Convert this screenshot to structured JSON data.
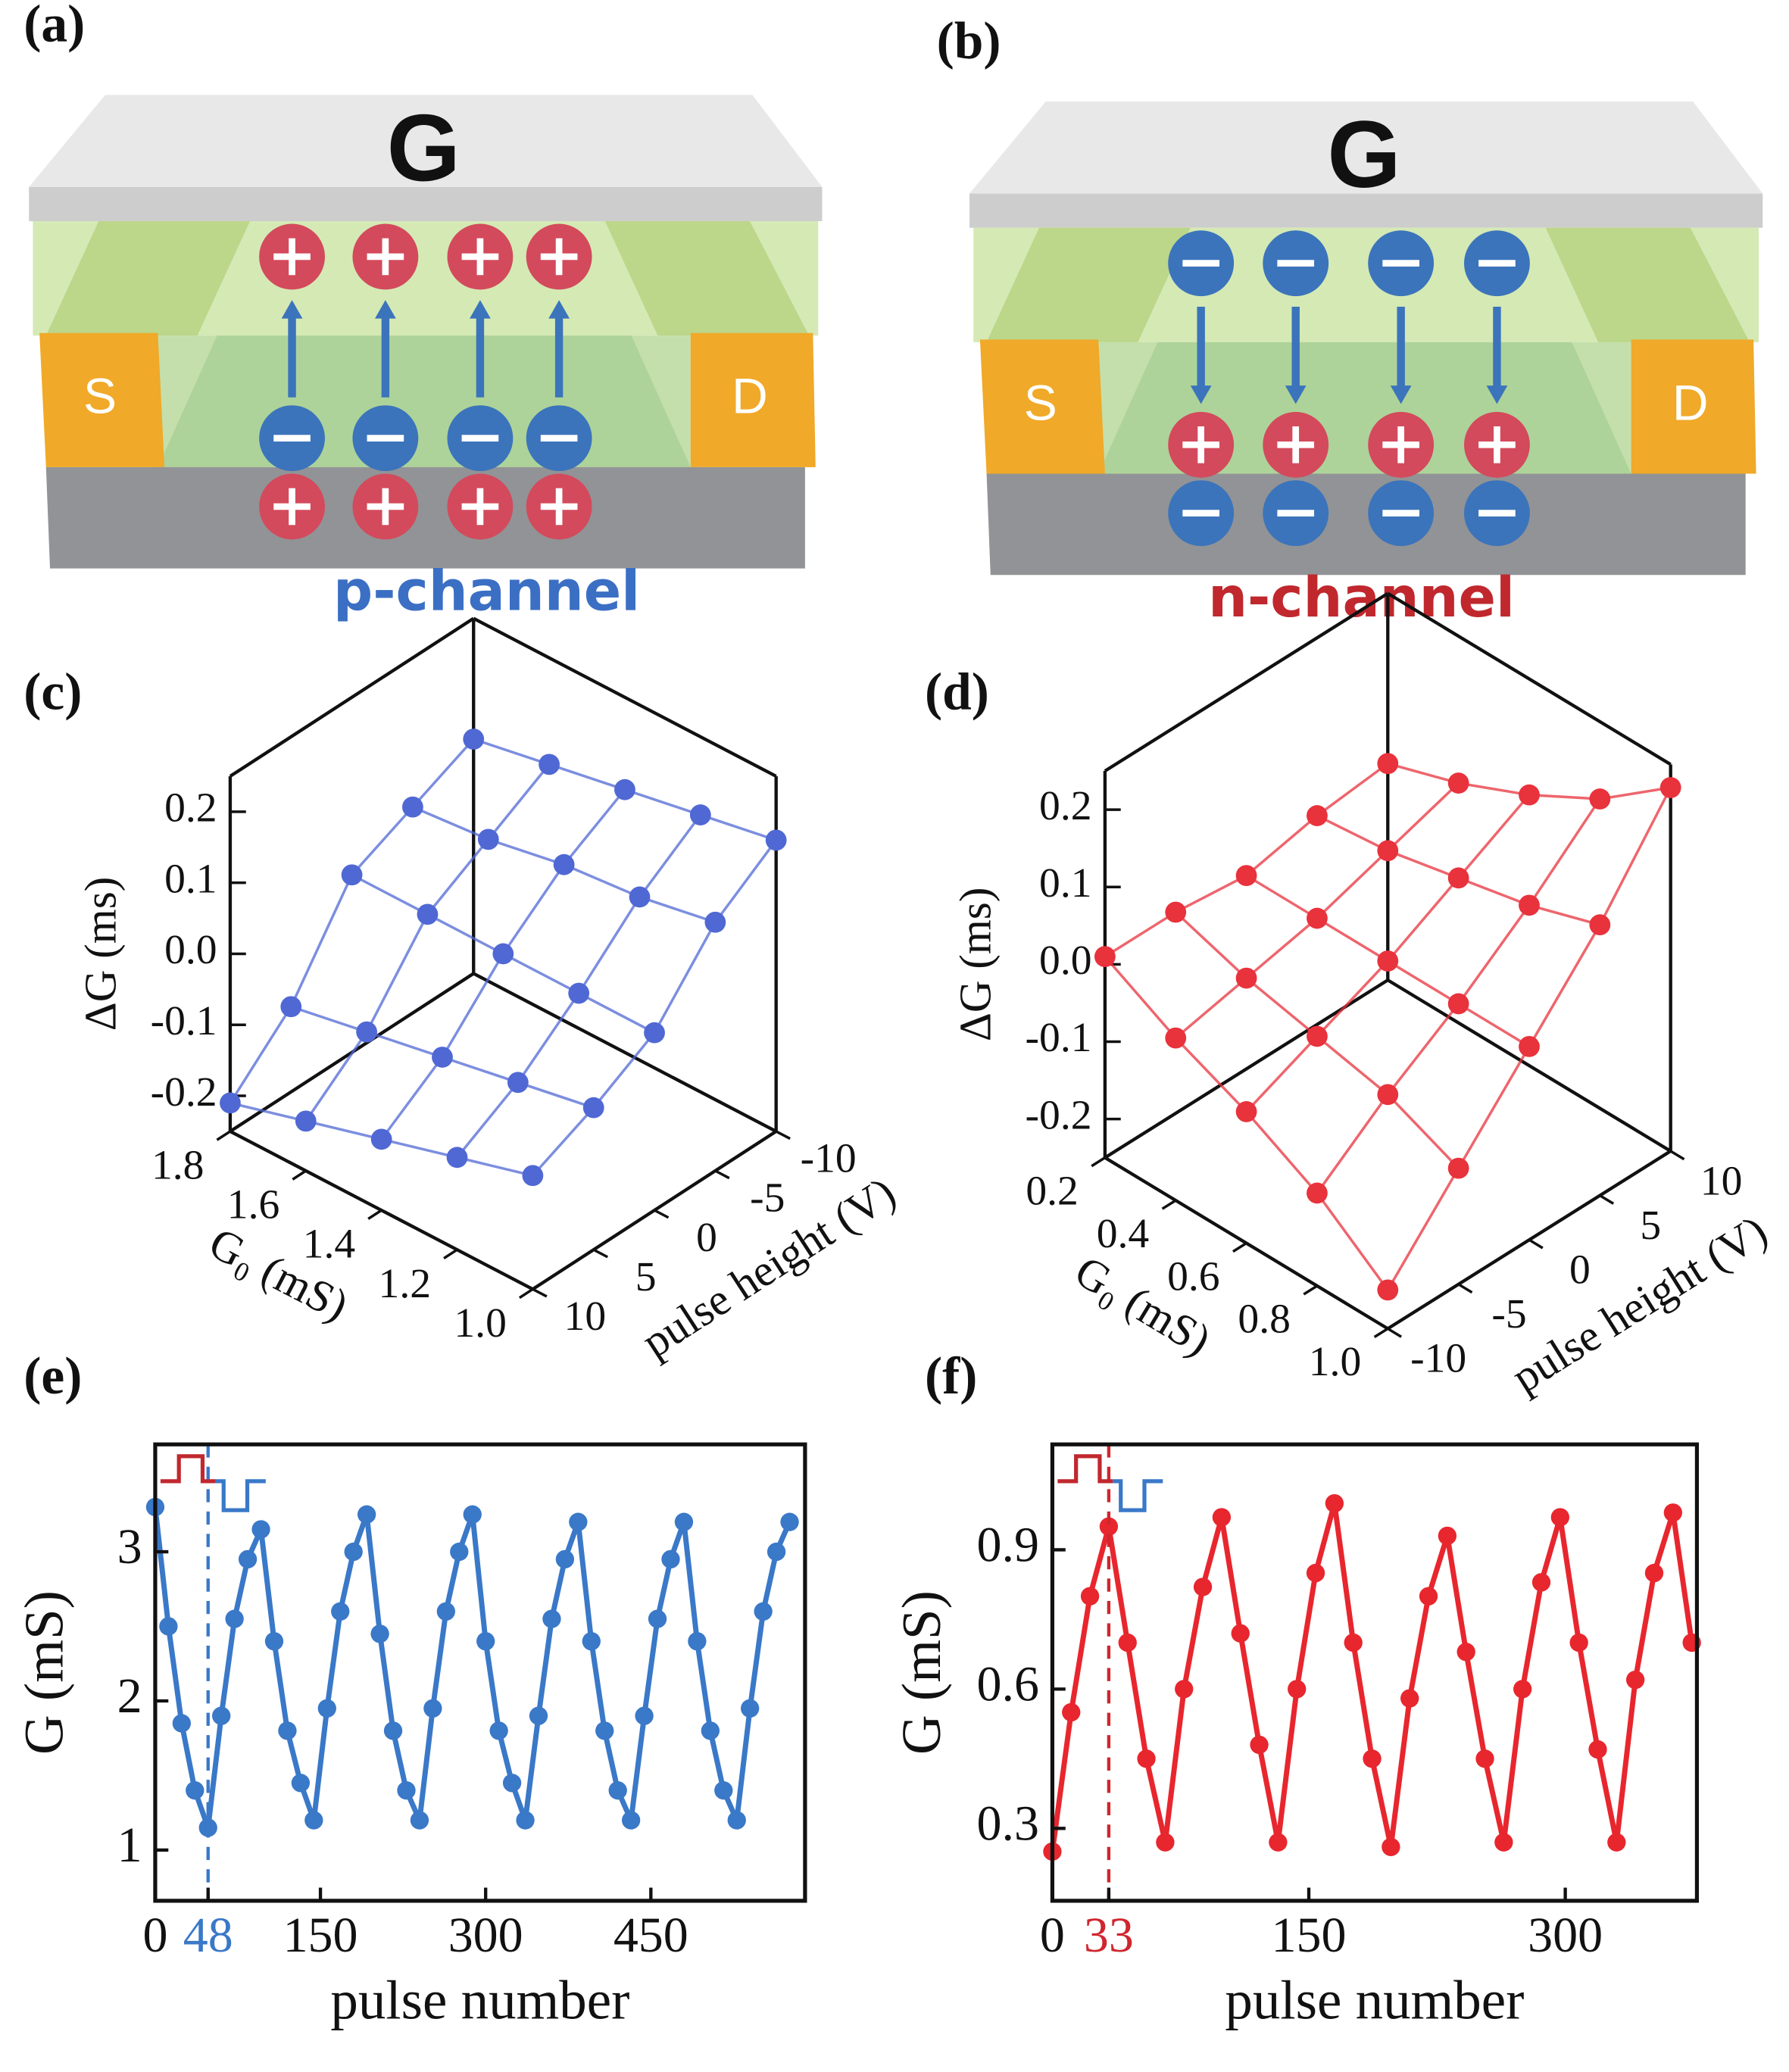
{
  "diagrams": [
    {
      "panel_label": "(a)",
      "gate": "G",
      "source": "S",
      "drain": "D",
      "caption": "p-channel",
      "caption_color": "#3b6fc4"
    },
    {
      "panel_label": "(b)",
      "gate": "G",
      "source": "S",
      "drain": "D",
      "caption": "n-channel",
      "caption_color": "#c0282e"
    }
  ],
  "chart_data": [
    {
      "type": "surface3d",
      "panel_label": "(c)",
      "color": "#5068d4",
      "xlabel": "G₀ (mS)",
      "ylabel": "pulse height (V)",
      "zlabel": "ΔG (ms)",
      "x": [
        1.0,
        1.2,
        1.4,
        1.6,
        1.8
      ],
      "y": [
        -10,
        -5,
        0,
        5,
        10
      ],
      "z": [
        [
          0.16,
          0.1,
          0.0,
          -0.05,
          -0.09
        ],
        [
          0.14,
          0.08,
          0.0,
          -0.07,
          -0.12
        ],
        [
          0.12,
          0.07,
          0.0,
          -0.09,
          -0.15
        ],
        [
          0.1,
          0.05,
          0.0,
          -0.11,
          -0.18
        ],
        [
          0.08,
          0.04,
          0.0,
          -0.13,
          -0.21
        ]
      ],
      "xlim": [
        1.0,
        1.8
      ],
      "ylim": [
        -10,
        10
      ],
      "zlim": [
        -0.25,
        0.25
      ],
      "xticks": [
        {
          "value": 1,
          "label": "1.0"
        },
        1.2,
        1.4,
        1.6,
        1.8
      ],
      "yticks": [
        -10,
        -5,
        0,
        5,
        10
      ],
      "zticks": [
        -0.2,
        -0.1,
        {
          "value": 0,
          "label": "0.0"
        },
        0.1,
        0.2
      ]
    },
    {
      "type": "surface3d",
      "panel_label": "(d)",
      "color": "#e8323c",
      "xlabel": "G₀ (mS)",
      "ylabel": "pulse height (V)",
      "zlabel": "ΔG (ms)",
      "x": [
        0.2,
        0.4,
        0.6,
        0.8,
        1.0
      ],
      "y": [
        -10,
        -5,
        0,
        5,
        10
      ],
      "z": [
        [
          0.01,
          0.01,
          0.0,
          0.02,
          0.03
        ],
        [
          -0.04,
          -0.02,
          0.0,
          0.03,
          0.06
        ],
        [
          -0.08,
          -0.04,
          0.0,
          0.05,
          0.1
        ],
        [
          -0.13,
          -0.06,
          0.0,
          0.07,
          0.15
        ],
        [
          -0.2,
          -0.1,
          0.0,
          0.1,
          0.22
        ]
      ],
      "xlim": [
        0.2,
        1.0
      ],
      "ylim": [
        -10,
        10
      ],
      "zlim": [
        -0.25,
        0.25
      ],
      "xticks": [
        0.2,
        0.4,
        0.6,
        0.8,
        {
          "value": 1,
          "label": "1.0"
        }
      ],
      "yticks": [
        -10,
        -5,
        0,
        5,
        10
      ],
      "zticks": [
        -0.2,
        -0.1,
        {
          "value": 0,
          "label": "0.0"
        },
        0.1,
        0.2
      ]
    },
    {
      "type": "scatter",
      "panel_label": "(e)",
      "color": "#3a78c8",
      "xlabel": "pulse number",
      "ylabel": "G (mS)",
      "x": [
        0,
        12,
        24,
        36,
        48,
        60,
        72,
        84,
        96,
        108,
        120,
        132,
        144,
        156,
        168,
        180,
        192,
        204,
        216,
        228,
        240,
        252,
        264,
        276,
        288,
        300,
        312,
        324,
        336,
        348,
        360,
        372,
        384,
        396,
        408,
        420,
        432,
        444,
        456,
        468,
        480,
        492,
        504,
        516,
        528,
        540,
        552,
        564,
        576
      ],
      "values": [
        3.3,
        2.5,
        1.85,
        1.4,
        1.15,
        1.9,
        2.55,
        2.95,
        3.15,
        2.4,
        1.8,
        1.45,
        1.2,
        1.95,
        2.6,
        3.0,
        3.25,
        2.45,
        1.8,
        1.4,
        1.2,
        1.95,
        2.6,
        3.0,
        3.25,
        2.4,
        1.8,
        1.45,
        1.2,
        1.9,
        2.55,
        2.95,
        3.2,
        2.4,
        1.8,
        1.4,
        1.2,
        1.9,
        2.55,
        2.95,
        3.2,
        2.4,
        1.8,
        1.4,
        1.2,
        1.95,
        2.6,
        3.0,
        3.2
      ],
      "xlim": [
        0,
        590
      ],
      "ylim": [
        0.66,
        3.72
      ],
      "xticks": [
        0,
        48,
        150,
        300,
        450
      ],
      "yticks": [
        1,
        2,
        3
      ],
      "marker_x": 48,
      "marker_color": "#3a78c8"
    },
    {
      "type": "scatter",
      "panel_label": "(f)",
      "color": "#e8262e",
      "xlabel": "pulse number",
      "ylabel": "G (mS)",
      "x": [
        0,
        11,
        22,
        33,
        44,
        55,
        66,
        77,
        88,
        99,
        110,
        121,
        132,
        143,
        154,
        165,
        176,
        187,
        198,
        209,
        220,
        231,
        242,
        253,
        264,
        275,
        286,
        297,
        308,
        319,
        330,
        341,
        352,
        363,
        374
      ],
      "values": [
        0.25,
        0.55,
        0.8,
        0.95,
        0.7,
        0.45,
        0.27,
        0.6,
        0.82,
        0.97,
        0.72,
        0.48,
        0.27,
        0.6,
        0.85,
        1.0,
        0.7,
        0.45,
        0.26,
        0.58,
        0.8,
        0.93,
        0.68,
        0.45,
        0.27,
        0.6,
        0.83,
        0.97,
        0.7,
        0.47,
        0.27,
        0.62,
        0.85,
        0.98,
        0.7
      ],
      "xlim": [
        0,
        377
      ],
      "ylim": [
        0.144,
        1.127
      ],
      "xticks": [
        0,
        33,
        150,
        300
      ],
      "yticks": [
        0.3,
        0.6,
        0.9
      ],
      "marker_x": 33,
      "marker_color": "#d0262e"
    }
  ]
}
